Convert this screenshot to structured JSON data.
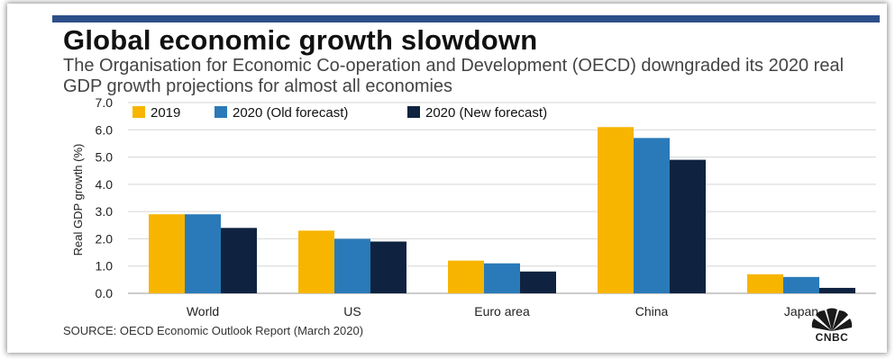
{
  "header": {
    "title": "Global economic growth slowdown",
    "subtitle": "The Organisation for Economic Co-operation and Development (OECD) downgraded its 2020 real GDP growth projections for almost all economies"
  },
  "footer": {
    "source": "SOURCE: OECD Economic Outlook Report (March 2020)",
    "logo_text": "CNBC"
  },
  "chart_data": {
    "type": "bar",
    "title": "Global economic growth slowdown",
    "xlabel": "",
    "ylabel": "Real GDP growth (%)",
    "categories": [
      "World",
      "US",
      "Euro area",
      "China",
      "Japan"
    ],
    "ylim": [
      0,
      7
    ],
    "yticks": [
      "0.0",
      "1.0",
      "2.0",
      "3.0",
      "4.0",
      "5.0",
      "6.0",
      "7.0"
    ],
    "grid": true,
    "legend_position": "top-left",
    "series": [
      {
        "name": "2019",
        "color": "#f7b500",
        "values": [
          2.9,
          2.3,
          1.2,
          6.1,
          0.7
        ]
      },
      {
        "name": "2020 (Old forecast)",
        "color": "#2a7ab9",
        "values": [
          2.9,
          2.0,
          1.1,
          5.7,
          0.6
        ]
      },
      {
        "name": "2020 (New forecast)",
        "color": "#0f2340",
        "values": [
          2.4,
          1.9,
          0.8,
          4.9,
          0.2
        ]
      }
    ]
  }
}
